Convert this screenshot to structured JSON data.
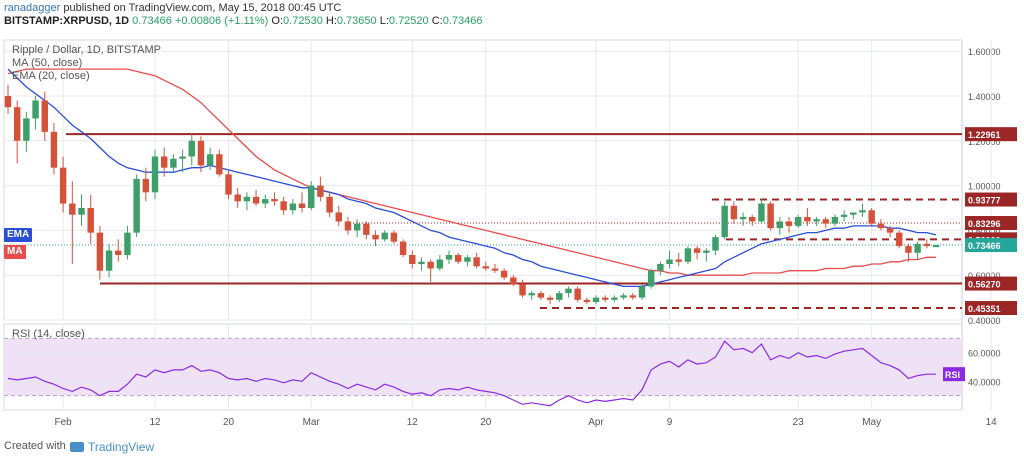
{
  "header": {
    "publisher": "ranadagger",
    "published_text": "published on TradingView.com, May 15, 2018 00:45 UTC",
    "symbol": "BITSTAMP:XRPUSD, 1D",
    "price": "0.73466",
    "change": "+0.00806 (+1.11%)",
    "o_label": "O:",
    "o": "0.72530",
    "h_label": "H:",
    "h": "0.73650",
    "l_label": "L:",
    "l": "0.72520",
    "c_label": "C:",
    "c": "0.73466"
  },
  "legend": {
    "title": "Ripple / Dollar, 1D, BITSTAMP",
    "ma": "MA (50, close)",
    "ema": "EMA (20, close)",
    "ema_tag": "EMA",
    "ma_tag": "MA"
  },
  "footer": {
    "created_with": "Created with",
    "brand": "TradingView"
  },
  "colors": {
    "up": "#26a69a",
    "down": "#ef5350",
    "up_body": "#3f9f6a",
    "down_body": "#d4523a",
    "ema": "#2a4fd6",
    "ma": "#e84c4c",
    "level_line": "#9c2525",
    "rsi_line": "#8a2be2",
    "rsi_band": "#efe2f7",
    "grid": "#e6e9ee",
    "axis_text": "#555555"
  },
  "chart_data": [
    {
      "type": "candlestick",
      "title": "Ripple / Dollar, 1D, BITSTAMP",
      "y_axis_position": "right",
      "ylim": [
        0.4,
        1.65
      ],
      "y_ticks": [
        "1.60000",
        "1.40000",
        "1.20000",
        "1.00000",
        "0.80000",
        "0.60000",
        "0.40000"
      ],
      "x_tick_labels": [
        {
          "label": "Feb",
          "index": 6
        },
        {
          "label": "12",
          "index": 16
        },
        {
          "label": "20",
          "index": 24
        },
        {
          "label": "Mar",
          "index": 33
        },
        {
          "label": "12",
          "index": 44
        },
        {
          "label": "20",
          "index": 52
        },
        {
          "label": "Apr",
          "index": 64
        },
        {
          "label": "9",
          "index": 72
        },
        {
          "label": "23",
          "index": 86
        },
        {
          "label": "May",
          "index": 94
        },
        {
          "label": "14",
          "index": 107
        }
      ],
      "candles": [
        [
          1.4,
          1.45,
          1.32,
          1.35
        ],
        [
          1.35,
          1.38,
          1.1,
          1.2
        ],
        [
          1.2,
          1.33,
          1.15,
          1.3
        ],
        [
          1.3,
          1.4,
          1.25,
          1.38
        ],
        [
          1.38,
          1.42,
          1.2,
          1.24
        ],
        [
          1.24,
          1.28,
          1.05,
          1.08
        ],
        [
          1.08,
          1.13,
          0.88,
          0.92
        ],
        [
          0.92,
          1.02,
          0.65,
          0.87
        ],
        [
          0.87,
          0.96,
          0.82,
          0.9
        ],
        [
          0.9,
          0.96,
          0.74,
          0.79
        ],
        [
          0.79,
          0.82,
          0.58,
          0.62
        ],
        [
          0.62,
          0.74,
          0.59,
          0.71
        ],
        [
          0.71,
          0.76,
          0.66,
          0.69
        ],
        [
          0.69,
          0.82,
          0.67,
          0.79
        ],
        [
          0.79,
          1.05,
          0.77,
          1.03
        ],
        [
          1.03,
          1.08,
          0.93,
          0.97
        ],
        [
          0.97,
          1.16,
          0.94,
          1.13
        ],
        [
          1.13,
          1.17,
          1.04,
          1.08
        ],
        [
          1.08,
          1.14,
          1.06,
          1.12
        ],
        [
          1.12,
          1.16,
          1.06,
          1.13
        ],
        [
          1.13,
          1.23,
          1.09,
          1.2
        ],
        [
          1.2,
          1.22,
          1.06,
          1.09
        ],
        [
          1.09,
          1.17,
          1.07,
          1.14
        ],
        [
          1.14,
          1.16,
          1.04,
          1.05
        ],
        [
          1.05,
          1.07,
          0.94,
          0.96
        ],
        [
          0.96,
          0.99,
          0.9,
          0.93
        ],
        [
          0.93,
          0.97,
          0.89,
          0.95
        ],
        [
          0.95,
          0.98,
          0.91,
          0.92
        ],
        [
          0.92,
          0.96,
          0.9,
          0.94
        ],
        [
          0.94,
          0.97,
          0.91,
          0.93
        ],
        [
          0.93,
          0.95,
          0.87,
          0.89
        ],
        [
          0.89,
          0.94,
          0.87,
          0.92
        ],
        [
          0.92,
          0.97,
          0.88,
          0.9
        ],
        [
          0.9,
          1.02,
          0.89,
          1.0
        ],
        [
          1.0,
          1.04,
          0.93,
          0.95
        ],
        [
          0.95,
          0.97,
          0.86,
          0.88
        ],
        [
          0.88,
          0.91,
          0.82,
          0.84
        ],
        [
          0.84,
          0.86,
          0.78,
          0.8
        ],
        [
          0.8,
          0.85,
          0.77,
          0.83
        ],
        [
          0.83,
          0.84,
          0.76,
          0.78
        ],
        [
          0.78,
          0.8,
          0.73,
          0.76
        ],
        [
          0.76,
          0.8,
          0.75,
          0.79
        ],
        [
          0.79,
          0.8,
          0.74,
          0.75
        ],
        [
          0.75,
          0.76,
          0.68,
          0.69
        ],
        [
          0.69,
          0.71,
          0.63,
          0.65
        ],
        [
          0.65,
          0.68,
          0.62,
          0.66
        ],
        [
          0.66,
          0.67,
          0.57,
          0.63
        ],
        [
          0.63,
          0.69,
          0.62,
          0.67
        ],
        [
          0.67,
          0.71,
          0.65,
          0.69
        ],
        [
          0.69,
          0.7,
          0.65,
          0.66
        ],
        [
          0.66,
          0.69,
          0.64,
          0.68
        ],
        [
          0.68,
          0.7,
          0.63,
          0.64
        ],
        [
          0.64,
          0.66,
          0.62,
          0.63
        ],
        [
          0.63,
          0.65,
          0.61,
          0.62
        ],
        [
          0.62,
          0.63,
          0.58,
          0.59
        ],
        [
          0.59,
          0.6,
          0.55,
          0.56
        ],
        [
          0.56,
          0.58,
          0.5,
          0.51
        ],
        [
          0.51,
          0.53,
          0.49,
          0.52
        ],
        [
          0.52,
          0.53,
          0.49,
          0.5
        ],
        [
          0.5,
          0.51,
          0.47,
          0.49
        ],
        [
          0.49,
          0.53,
          0.48,
          0.52
        ],
        [
          0.52,
          0.55,
          0.5,
          0.54
        ],
        [
          0.54,
          0.55,
          0.48,
          0.49
        ],
        [
          0.49,
          0.5,
          0.47,
          0.48
        ],
        [
          0.48,
          0.51,
          0.47,
          0.5
        ],
        [
          0.5,
          0.51,
          0.48,
          0.49
        ],
        [
          0.49,
          0.51,
          0.48,
          0.5
        ],
        [
          0.5,
          0.52,
          0.49,
          0.51
        ],
        [
          0.51,
          0.52,
          0.49,
          0.5
        ],
        [
          0.5,
          0.56,
          0.49,
          0.55
        ],
        [
          0.55,
          0.63,
          0.54,
          0.62
        ],
        [
          0.62,
          0.66,
          0.6,
          0.65
        ],
        [
          0.65,
          0.71,
          0.63,
          0.67
        ],
        [
          0.67,
          0.7,
          0.64,
          0.66
        ],
        [
          0.66,
          0.73,
          0.65,
          0.72
        ],
        [
          0.72,
          0.73,
          0.67,
          0.7
        ],
        [
          0.7,
          0.72,
          0.66,
          0.71
        ],
        [
          0.71,
          0.78,
          0.69,
          0.77
        ],
        [
          0.77,
          0.93,
          0.76,
          0.91
        ],
        [
          0.91,
          0.93,
          0.83,
          0.85
        ],
        [
          0.85,
          0.88,
          0.82,
          0.86
        ],
        [
          0.86,
          0.87,
          0.82,
          0.84
        ],
        [
          0.84,
          0.94,
          0.83,
          0.92
        ],
        [
          0.92,
          0.93,
          0.8,
          0.81
        ],
        [
          0.81,
          0.86,
          0.78,
          0.84
        ],
        [
          0.84,
          0.86,
          0.79,
          0.82
        ],
        [
          0.82,
          0.87,
          0.81,
          0.86
        ],
        [
          0.86,
          0.9,
          0.82,
          0.84
        ],
        [
          0.84,
          0.86,
          0.82,
          0.85
        ],
        [
          0.85,
          0.86,
          0.81,
          0.83
        ],
        [
          0.83,
          0.87,
          0.82,
          0.86
        ],
        [
          0.86,
          0.89,
          0.84,
          0.87
        ],
        [
          0.87,
          0.88,
          0.85,
          0.88
        ],
        [
          0.88,
          0.92,
          0.86,
          0.89
        ],
        [
          0.89,
          0.9,
          0.82,
          0.83
        ],
        [
          0.83,
          0.85,
          0.8,
          0.81
        ],
        [
          0.81,
          0.82,
          0.77,
          0.79
        ],
        [
          0.79,
          0.8,
          0.72,
          0.73
        ],
        [
          0.73,
          0.74,
          0.66,
          0.7
        ],
        [
          0.7,
          0.75,
          0.67,
          0.74
        ],
        [
          0.74,
          0.76,
          0.72,
          0.73
        ],
        [
          0.7253,
          0.7365,
          0.7252,
          0.73466
        ]
      ],
      "ema_20": [
        1.52,
        1.48,
        1.44,
        1.41,
        1.38,
        1.35,
        1.31,
        1.27,
        1.24,
        1.21,
        1.17,
        1.13,
        1.1,
        1.08,
        1.07,
        1.06,
        1.06,
        1.06,
        1.06,
        1.07,
        1.08,
        1.08,
        1.09,
        1.08,
        1.07,
        1.06,
        1.05,
        1.04,
        1.03,
        1.02,
        1.01,
        1.0,
        0.99,
        0.99,
        0.98,
        0.97,
        0.96,
        0.94,
        0.93,
        0.92,
        0.9,
        0.89,
        0.88,
        0.86,
        0.84,
        0.82,
        0.8,
        0.79,
        0.77,
        0.76,
        0.75,
        0.74,
        0.73,
        0.72,
        0.7,
        0.69,
        0.67,
        0.66,
        0.64,
        0.63,
        0.62,
        0.61,
        0.6,
        0.59,
        0.58,
        0.57,
        0.56,
        0.55,
        0.55,
        0.55,
        0.56,
        0.57,
        0.58,
        0.59,
        0.6,
        0.61,
        0.62,
        0.63,
        0.66,
        0.68,
        0.7,
        0.72,
        0.74,
        0.75,
        0.76,
        0.77,
        0.78,
        0.79,
        0.79,
        0.8,
        0.81,
        0.81,
        0.82,
        0.82,
        0.82,
        0.82,
        0.81,
        0.81,
        0.8,
        0.79,
        0.79,
        0.78
      ],
      "ma_50": [
        1.5,
        1.51,
        1.52,
        1.52,
        1.52,
        1.52,
        1.52,
        1.52,
        1.52,
        1.52,
        1.52,
        1.52,
        1.52,
        1.52,
        1.51,
        1.5,
        1.49,
        1.47,
        1.45,
        1.43,
        1.4,
        1.37,
        1.33,
        1.29,
        1.25,
        1.21,
        1.17,
        1.13,
        1.1,
        1.07,
        1.05,
        1.03,
        1.01,
        0.99,
        0.98,
        0.97,
        0.96,
        0.95,
        0.94,
        0.93,
        0.92,
        0.91,
        0.9,
        0.89,
        0.88,
        0.87,
        0.86,
        0.85,
        0.84,
        0.83,
        0.82,
        0.81,
        0.8,
        0.79,
        0.78,
        0.77,
        0.76,
        0.75,
        0.74,
        0.73,
        0.72,
        0.71,
        0.7,
        0.69,
        0.68,
        0.67,
        0.66,
        0.65,
        0.64,
        0.63,
        0.62,
        0.62,
        0.61,
        0.61,
        0.6,
        0.6,
        0.6,
        0.6,
        0.6,
        0.6,
        0.6,
        0.61,
        0.61,
        0.61,
        0.61,
        0.62,
        0.62,
        0.62,
        0.62,
        0.63,
        0.63,
        0.63,
        0.64,
        0.64,
        0.65,
        0.65,
        0.66,
        0.66,
        0.67,
        0.67,
        0.68,
        0.68
      ],
      "horizontal_levels": [
        {
          "value": 1.22961,
          "label": "1.22961",
          "style": "solid"
        },
        {
          "value": 0.93777,
          "label": "0.93777",
          "style": "dashed"
        },
        {
          "value": 0.83296,
          "label": "0.83296",
          "style": "dotted"
        },
        {
          "value": 0.76,
          "label": "0.76000",
          "style": "dashed"
        },
        {
          "value": 0.73466,
          "label": "0.73466",
          "style": "price"
        },
        {
          "value": 0.5627,
          "label": "0.56270",
          "style": "solid"
        },
        {
          "value": 0.45351,
          "label": "0.45351",
          "style": "dashed"
        }
      ]
    },
    {
      "type": "line",
      "title": "RSI (14, close)",
      "ylim": [
        20,
        80
      ],
      "y_ticks": [
        "60.0000",
        "40.0000"
      ],
      "band": [
        30,
        70
      ],
      "last_tag": "RSI",
      "values": [
        42,
        41,
        42,
        43,
        40,
        38,
        35,
        33,
        36,
        34,
        30,
        33,
        33,
        38,
        45,
        43,
        48,
        46,
        48,
        48,
        51,
        47,
        48,
        46,
        42,
        41,
        42,
        40,
        42,
        41,
        39,
        41,
        40,
        46,
        43,
        40,
        38,
        35,
        38,
        36,
        34,
        38,
        36,
        33,
        31,
        32,
        30,
        34,
        35,
        34,
        36,
        34,
        33,
        32,
        30,
        27,
        24,
        25,
        24,
        23,
        27,
        30,
        27,
        25,
        27,
        26,
        27,
        28,
        27,
        34,
        48,
        52,
        54,
        50,
        55,
        52,
        53,
        57,
        68,
        62,
        63,
        60,
        66,
        55,
        58,
        56,
        60,
        57,
        58,
        56,
        59,
        61,
        62,
        63,
        58,
        53,
        51,
        48,
        42,
        44,
        45,
        45
      ]
    }
  ]
}
